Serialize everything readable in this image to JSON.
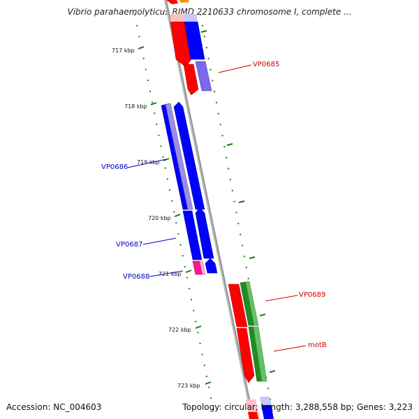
{
  "title": "Vibrio parahaemolyticus RIMD 2210633 chromosome I, complete ...",
  "footer": {
    "accession": "Accession: NC_004603",
    "summary": "Topology: circular; Length: 3,288,558 bp; Genes: 3,223"
  },
  "colors": {
    "backbone": "#888888",
    "tick": "#1a7a1a",
    "forward_gene": "#ff0000",
    "reverse_gene": "#0000ff",
    "cds_green": "#228b22",
    "gene_label_red": "#cc0000",
    "gene_label_blue": "#0000cc"
  },
  "kbp_labels": [
    "717 kbp",
    "718 kbp",
    "719 kbp",
    "720 kbp",
    "721 kbp",
    "722 kbp",
    "723 kbp"
  ],
  "gene_labels": {
    "vp0685": "VP0685",
    "vp0686": "VP0686",
    "vp0687": "VP0687",
    "vp0688": "VP0688",
    "vp0689": "VP0689",
    "motb": "motB"
  }
}
